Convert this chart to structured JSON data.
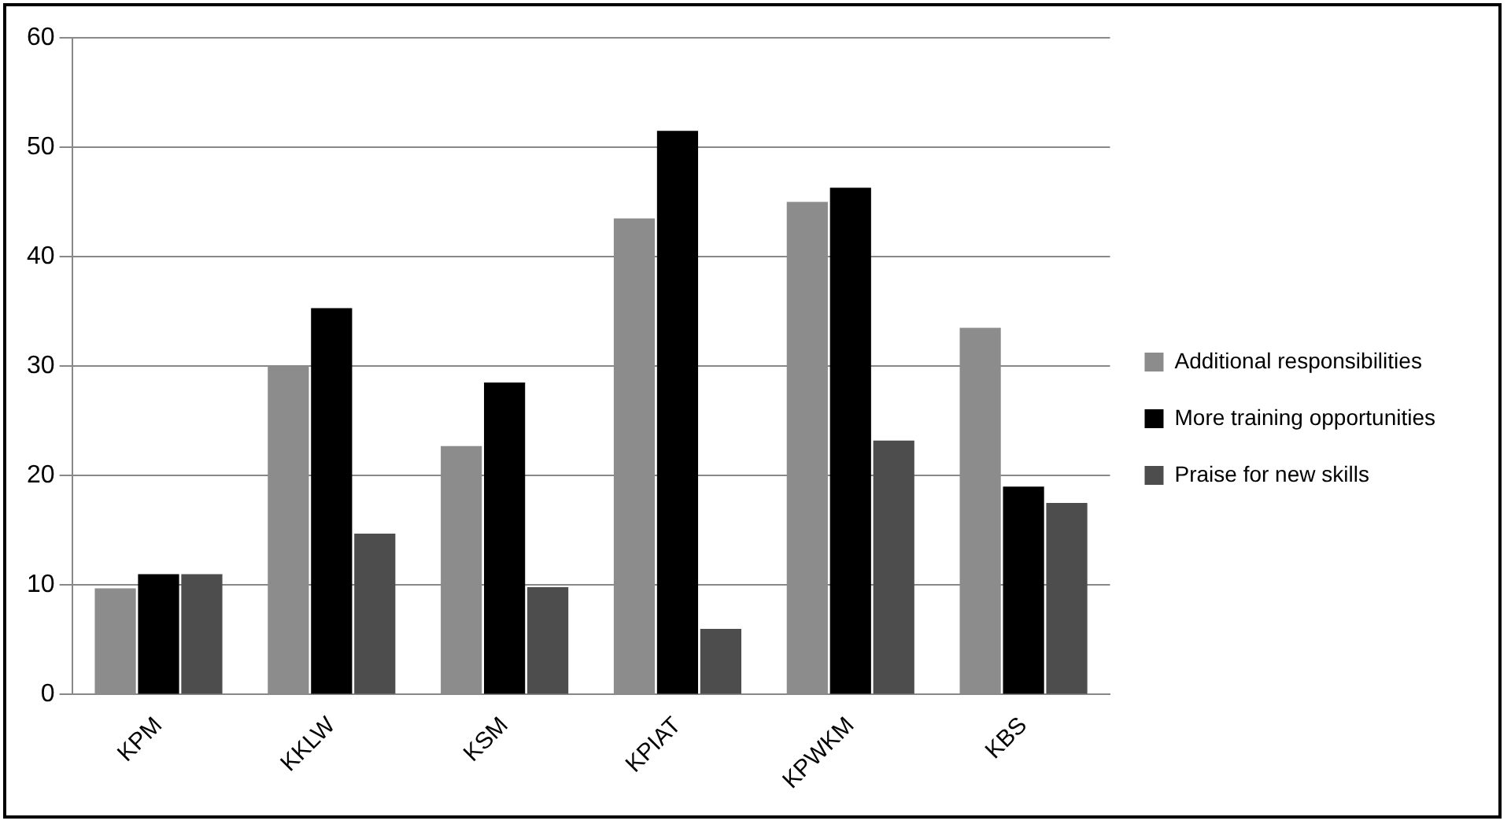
{
  "chart_data": {
    "type": "bar",
    "categories": [
      "KPM",
      "KKLW",
      "KSM",
      "KPIAT",
      "KPWKM",
      "KBS"
    ],
    "series": [
      {
        "name": "Additional responsibilities",
        "color": "#8c8c8c",
        "values": [
          9.7,
          30,
          22.7,
          43.5,
          45,
          33.5
        ]
      },
      {
        "name": "More training opportunities",
        "color": "#000000",
        "values": [
          11,
          35.3,
          28.5,
          51.5,
          46.3,
          19
        ]
      },
      {
        "name": "Praise for new skills",
        "color": "#4d4d4d",
        "values": [
          11,
          14.7,
          9.8,
          6,
          23.2,
          17.5
        ]
      }
    ],
    "ylim": [
      0,
      60
    ],
    "yticks": [
      0,
      10,
      20,
      30,
      40,
      50,
      60
    ],
    "grid": "y",
    "legend": "right"
  }
}
